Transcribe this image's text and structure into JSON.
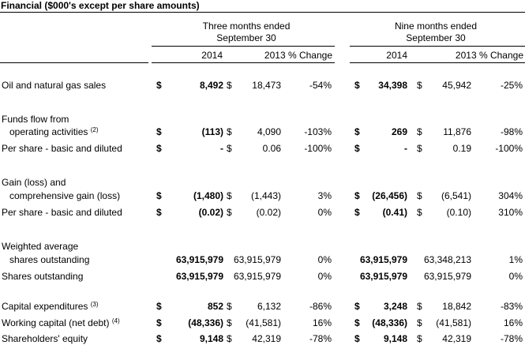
{
  "title": "Financial ($000's except per share amounts)",
  "headers": {
    "three_months": "Three months ended",
    "three_months_date": "September 30",
    "nine_months": "Nine months ended",
    "nine_months_date": "September 30",
    "y2014_a": "2014",
    "y2013_a": "2013 % Change",
    "y2014_b": "2014",
    "y2013_b": "2013 % Change"
  },
  "rows": [
    {
      "label": "Oil and natural gas sales",
      "sup": "",
      "d1": "$",
      "v1": "8,492",
      "d2": "$",
      "v2": "18,473",
      "p1": "-54%",
      "d3": "$",
      "v3": "34,398",
      "d4": "$",
      "v4": "45,942",
      "p2": "-25%"
    },
    {
      "label": "Funds flow from",
      "sup": "",
      "d1": "",
      "v1": "",
      "d2": "",
      "v2": "",
      "p1": "",
      "d3": "",
      "v3": "",
      "d4": "",
      "v4": "",
      "p2": ""
    },
    {
      "label": "operating activities",
      "sup": "(2)",
      "d1": "$",
      "v1": "(113)",
      "d2": "$",
      "v2": "4,090",
      "p1": "-103%",
      "d3": "$",
      "v3": "269",
      "d4": "$",
      "v4": "11,876",
      "p2": "-98%"
    },
    {
      "label": "Per share - basic and diluted",
      "sup": "",
      "d1": "$",
      "v1": "-",
      "d2": "$",
      "v2": "0.06",
      "p1": "-100%",
      "d3": "$",
      "v3": "-",
      "d4": "$",
      "v4": "0.19",
      "p2": "-100%"
    },
    {
      "label": "Gain (loss) and",
      "sup": "",
      "d1": "",
      "v1": "",
      "d2": "",
      "v2": "",
      "p1": "",
      "d3": "",
      "v3": "",
      "d4": "",
      "v4": "",
      "p2": ""
    },
    {
      "label": "comprehensive gain (loss)",
      "sup": "",
      "d1": "$",
      "v1": "(1,480)",
      "d2": "$",
      "v2": "(1,443)",
      "p1": "3%",
      "d3": "$",
      "v3": "(26,456)",
      "d4": "$",
      "v4": "(6,541)",
      "p2": "304%"
    },
    {
      "label": "Per share - basic and diluted",
      "sup": "",
      "d1": "$",
      "v1": "(0.02)",
      "d2": "$",
      "v2": "(0.02)",
      "p1": "0%",
      "d3": "$",
      "v3": "(0.41)",
      "d4": "$",
      "v4": "(0.10)",
      "p2": "310%"
    },
    {
      "label": "Weighted average",
      "sup": "",
      "d1": "",
      "v1": "",
      "d2": "",
      "v2": "",
      "p1": "",
      "d3": "",
      "v3": "",
      "d4": "",
      "v4": "",
      "p2": ""
    },
    {
      "label": "shares outstanding",
      "sup": "",
      "d1": "",
      "v1": "63,915,979",
      "d2": "",
      "v2": "63,915,979",
      "p1": "0%",
      "d3": "",
      "v3": "63,915,979",
      "d4": "",
      "v4": "63,348,213",
      "p2": "1%"
    },
    {
      "label": "Shares outstanding",
      "sup": "",
      "d1": "",
      "v1": "63,915,979",
      "d2": "",
      "v2": "63,915,979",
      "p1": "0%",
      "d3": "",
      "v3": "63,915,979",
      "d4": "",
      "v4": "63,915,979",
      "p2": "0%"
    },
    {
      "label": "Capital expenditures",
      "sup": "(3)",
      "d1": "$",
      "v1": "852",
      "d2": "$",
      "v2": "6,132",
      "p1": "-86%",
      "d3": "$",
      "v3": "3,248",
      "d4": "$",
      "v4": "18,842",
      "p2": "-83%"
    },
    {
      "label": "Working capital (net debt)",
      "sup": "(4)",
      "d1": "$",
      "v1": "(48,336)",
      "d2": "$",
      "v2": "(41,581)",
      "p1": "16%",
      "d3": "$",
      "v3": "(48,336)",
      "d4": "$",
      "v4": "(41,581)",
      "p2": "16%"
    },
    {
      "label": "Shareholders' equity",
      "sup": "",
      "d1": "$",
      "v1": "9,148",
      "d2": "$",
      "v2": "42,319",
      "p1": "-78%",
      "d3": "$",
      "v3": "9,148",
      "d4": "$",
      "v4": "42,319",
      "p2": "-78%"
    }
  ]
}
